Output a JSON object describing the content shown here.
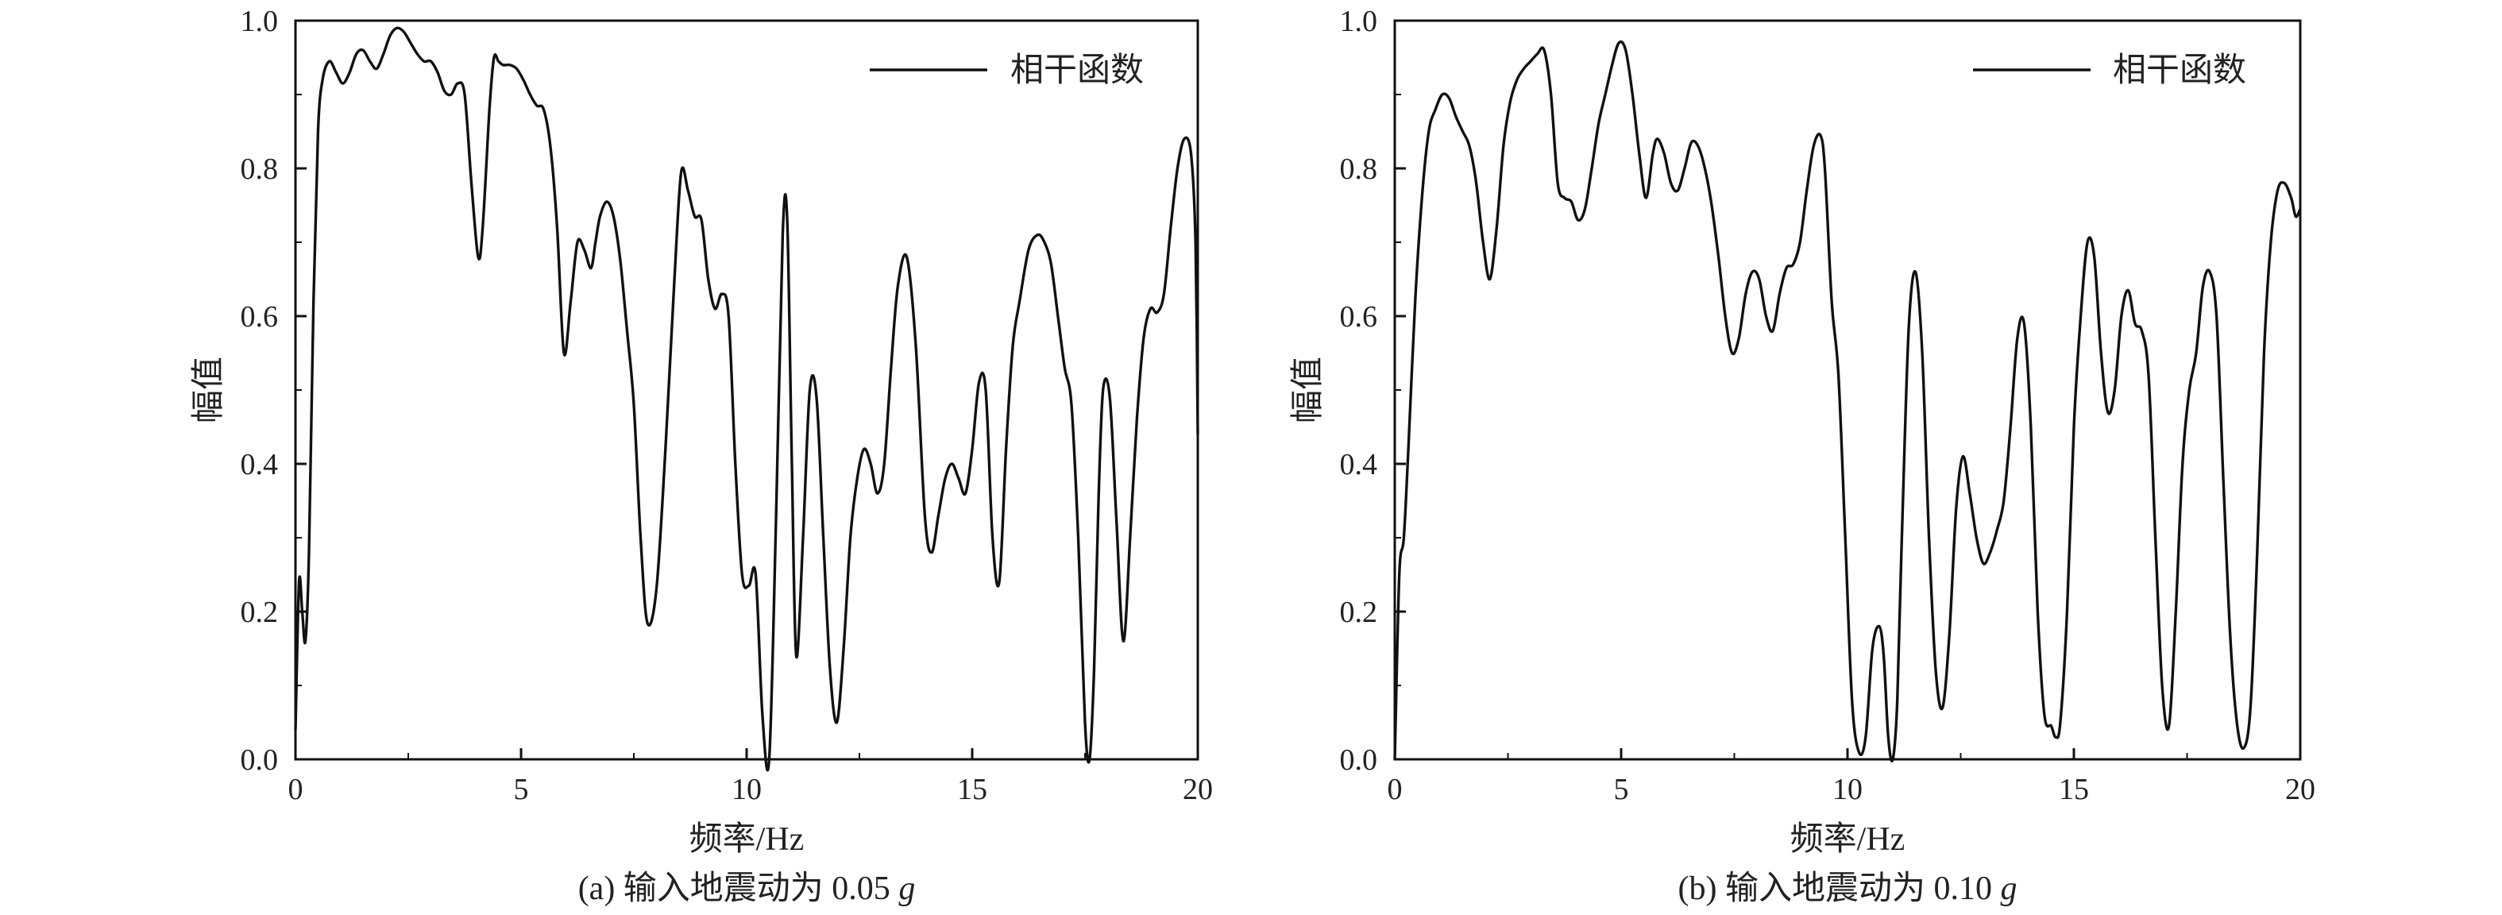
{
  "chart_data": [
    {
      "type": "line",
      "caption_prefix": "(a) 输入地震动为 0.05 ",
      "caption_g": "g",
      "xlabel": "频率/Hz",
      "ylabel": "幅值",
      "xlim": [
        0,
        20
      ],
      "ylim": [
        0,
        1.0
      ],
      "xticks": [
        "0",
        "5",
        "10",
        "15",
        "20"
      ],
      "yticks": [
        "0.0",
        "0.2",
        "0.4",
        "0.6",
        "0.8",
        "1.0"
      ],
      "grid": false,
      "legend_position": "top-right",
      "series": [
        {
          "name": "相干函数",
          "color": "#111111",
          "x": [
            0,
            0.08,
            0.15,
            0.22,
            0.3,
            0.4,
            0.5,
            0.6,
            0.75,
            0.9,
            1.05,
            1.2,
            1.35,
            1.5,
            1.65,
            1.8,
            1.95,
            2.1,
            2.25,
            2.4,
            2.55,
            2.7,
            2.85,
            3.0,
            3.15,
            3.3,
            3.45,
            3.6,
            3.75,
            3.9,
            4.05,
            4.15,
            4.3,
            4.4,
            4.5,
            4.6,
            4.75,
            4.9,
            5.05,
            5.2,
            5.35,
            5.5,
            5.65,
            5.8,
            5.95,
            6.1,
            6.25,
            6.4,
            6.55,
            6.65,
            6.75,
            6.9,
            7.05,
            7.2,
            7.35,
            7.5,
            7.65,
            7.8,
            8.0,
            8.2,
            8.4,
            8.55,
            8.7,
            8.85,
            9.0,
            9.15,
            9.3,
            9.45,
            9.6,
            9.75,
            9.9,
            10.05,
            10.2,
            10.35,
            10.5,
            10.65,
            10.8,
            10.9,
            11.0,
            11.1,
            11.25,
            11.4,
            11.55,
            11.7,
            11.85,
            12.0,
            12.15,
            12.3,
            12.45,
            12.6,
            12.75,
            12.9,
            13.05,
            13.2,
            13.35,
            13.55,
            13.75,
            13.95,
            14.1,
            14.25,
            14.4,
            14.55,
            14.7,
            14.85,
            15.0,
            15.15,
            15.3,
            15.45,
            15.6,
            15.75,
            15.9,
            16.05,
            16.25,
            16.45,
            16.6,
            16.75,
            16.9,
            17.05,
            17.2,
            17.35,
            17.5,
            17.6,
            17.7,
            17.8,
            17.9,
            18.05,
            18.2,
            18.35,
            18.5,
            18.65,
            18.8,
            18.95,
            19.1,
            19.25,
            19.4,
            19.55,
            19.7,
            19.85,
            19.95,
            20.0
          ],
          "y": [
            0.04,
            0.24,
            0.2,
            0.16,
            0.28,
            0.62,
            0.85,
            0.92,
            0.945,
            0.93,
            0.915,
            0.93,
            0.955,
            0.96,
            0.945,
            0.935,
            0.955,
            0.98,
            0.99,
            0.985,
            0.97,
            0.955,
            0.945,
            0.945,
            0.93,
            0.905,
            0.9,
            0.915,
            0.9,
            0.78,
            0.68,
            0.72,
            0.88,
            0.95,
            0.945,
            0.94,
            0.94,
            0.935,
            0.92,
            0.9,
            0.885,
            0.88,
            0.83,
            0.72,
            0.55,
            0.62,
            0.7,
            0.69,
            0.665,
            0.7,
            0.735,
            0.755,
            0.735,
            0.675,
            0.58,
            0.48,
            0.3,
            0.185,
            0.23,
            0.42,
            0.65,
            0.795,
            0.77,
            0.735,
            0.73,
            0.65,
            0.61,
            0.63,
            0.6,
            0.4,
            0.25,
            0.235,
            0.25,
            0.06,
            0.0,
            0.32,
            0.71,
            0.73,
            0.41,
            0.14,
            0.3,
            0.5,
            0.49,
            0.3,
            0.12,
            0.05,
            0.15,
            0.3,
            0.38,
            0.42,
            0.4,
            0.36,
            0.4,
            0.53,
            0.64,
            0.68,
            0.56,
            0.33,
            0.28,
            0.33,
            0.38,
            0.4,
            0.38,
            0.36,
            0.42,
            0.51,
            0.5,
            0.3,
            0.24,
            0.42,
            0.56,
            0.62,
            0.69,
            0.71,
            0.7,
            0.67,
            0.6,
            0.53,
            0.48,
            0.3,
            0.05,
            0.0,
            0.12,
            0.35,
            0.5,
            0.49,
            0.32,
            0.16,
            0.3,
            0.46,
            0.57,
            0.61,
            0.605,
            0.63,
            0.72,
            0.8,
            0.84,
            0.82,
            0.7,
            0.44
          ]
        }
      ]
    },
    {
      "type": "line",
      "caption_prefix": "(b) 输入地震动为 0.10 ",
      "caption_g": "g",
      "xlabel": "频率/Hz",
      "ylabel": "幅值",
      "xlim": [
        0,
        20
      ],
      "ylim": [
        0,
        1.0
      ],
      "xticks": [
        "0",
        "5",
        "10",
        "15",
        "20"
      ],
      "yticks": [
        "0.0",
        "0.2",
        "0.4",
        "0.6",
        "0.8",
        "1.0"
      ],
      "grid": false,
      "legend_position": "top-right",
      "series": [
        {
          "name": "相干函数",
          "color": "#111111",
          "x": [
            0,
            0.1,
            0.2,
            0.3,
            0.45,
            0.6,
            0.75,
            0.9,
            1.05,
            1.2,
            1.35,
            1.5,
            1.65,
            1.8,
            1.95,
            2.1,
            2.25,
            2.4,
            2.55,
            2.7,
            2.85,
            3.0,
            3.15,
            3.3,
            3.45,
            3.6,
            3.75,
            3.9,
            4.05,
            4.2,
            4.35,
            4.5,
            4.65,
            4.8,
            4.95,
            5.1,
            5.25,
            5.4,
            5.55,
            5.7,
            5.8,
            5.95,
            6.1,
            6.25,
            6.4,
            6.55,
            6.7,
            6.85,
            7.0,
            7.15,
            7.3,
            7.45,
            7.6,
            7.75,
            7.9,
            8.05,
            8.2,
            8.35,
            8.5,
            8.65,
            8.8,
            8.95,
            9.1,
            9.25,
            9.4,
            9.5,
            9.65,
            9.8,
            9.95,
            10.1,
            10.25,
            10.4,
            10.55,
            10.7,
            10.8,
            10.9,
            11.0,
            11.1,
            11.2,
            11.35,
            11.5,
            11.65,
            11.8,
            11.95,
            12.1,
            12.25,
            12.4,
            12.55,
            12.7,
            12.85,
            13.0,
            13.15,
            13.3,
            13.45,
            13.6,
            13.75,
            13.9,
            14.05,
            14.2,
            14.35,
            14.5,
            14.6,
            14.7,
            14.85,
            15.0,
            15.15,
            15.3,
            15.45,
            15.6,
            15.75,
            15.9,
            16.05,
            16.2,
            16.35,
            16.5,
            16.65,
            16.8,
            16.95,
            17.1,
            17.25,
            17.4,
            17.55,
            17.7,
            17.85,
            18.0,
            18.15,
            18.3,
            18.45,
            18.6,
            18.75,
            18.9,
            19.05,
            19.2,
            19.35,
            19.5,
            19.65,
            19.8,
            19.9,
            20.0
          ],
          "y": [
            0.0,
            0.25,
            0.3,
            0.42,
            0.62,
            0.76,
            0.85,
            0.88,
            0.9,
            0.895,
            0.87,
            0.85,
            0.83,
            0.78,
            0.7,
            0.65,
            0.72,
            0.83,
            0.89,
            0.92,
            0.935,
            0.945,
            0.955,
            0.96,
            0.9,
            0.78,
            0.76,
            0.755,
            0.73,
            0.745,
            0.8,
            0.86,
            0.9,
            0.94,
            0.97,
            0.96,
            0.9,
            0.82,
            0.76,
            0.82,
            0.84,
            0.82,
            0.78,
            0.77,
            0.8,
            0.835,
            0.83,
            0.8,
            0.75,
            0.68,
            0.6,
            0.55,
            0.57,
            0.63,
            0.66,
            0.65,
            0.6,
            0.58,
            0.63,
            0.665,
            0.67,
            0.7,
            0.77,
            0.83,
            0.845,
            0.8,
            0.62,
            0.52,
            0.3,
            0.08,
            0.01,
            0.03,
            0.15,
            0.18,
            0.14,
            0.03,
            0.0,
            0.08,
            0.3,
            0.58,
            0.66,
            0.55,
            0.3,
            0.12,
            0.07,
            0.17,
            0.34,
            0.41,
            0.36,
            0.3,
            0.265,
            0.28,
            0.31,
            0.35,
            0.45,
            0.57,
            0.59,
            0.45,
            0.2,
            0.06,
            0.045,
            0.03,
            0.05,
            0.2,
            0.45,
            0.6,
            0.7,
            0.68,
            0.55,
            0.47,
            0.5,
            0.6,
            0.635,
            0.59,
            0.58,
            0.52,
            0.3,
            0.1,
            0.045,
            0.2,
            0.4,
            0.5,
            0.55,
            0.64,
            0.66,
            0.6,
            0.38,
            0.17,
            0.05,
            0.015,
            0.07,
            0.28,
            0.55,
            0.7,
            0.77,
            0.78,
            0.76,
            0.735,
            0.745
          ]
        }
      ]
    }
  ]
}
